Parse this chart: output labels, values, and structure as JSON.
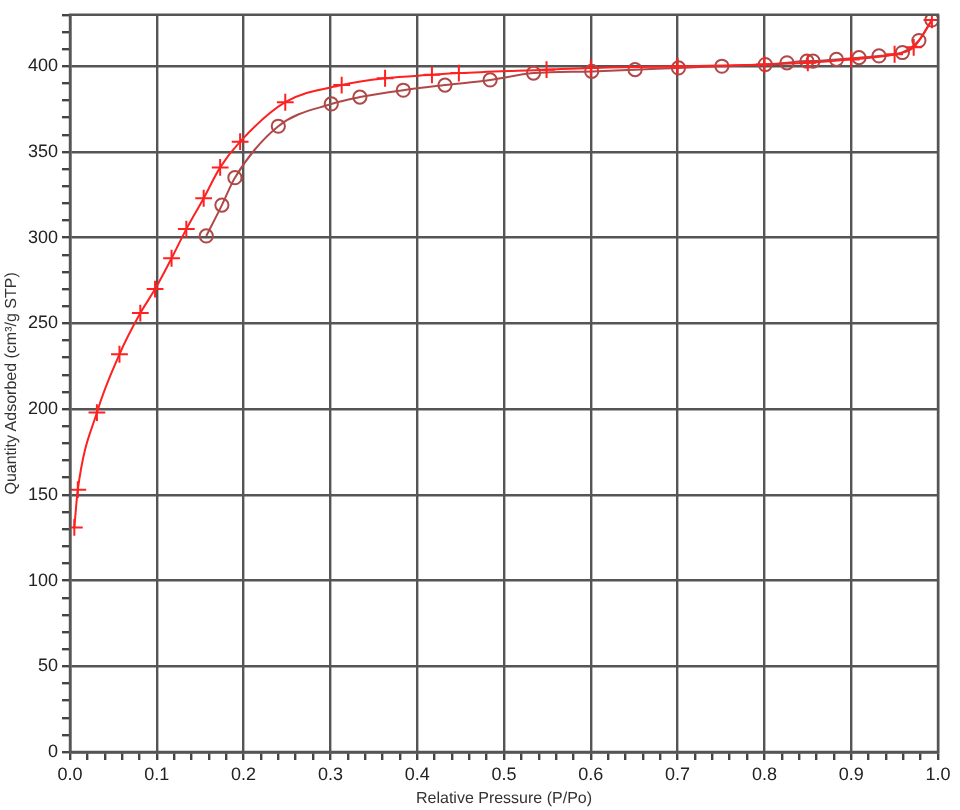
{
  "chart_data": {
    "type": "line",
    "xlabel": "Relative Pressure (P/Po)",
    "ylabel": "Quantity Adsorbed (cm³/g STP)",
    "xlim": [
      0,
      1
    ],
    "ylim": [
      0,
      430
    ],
    "xticks": [
      {
        "value": 0,
        "label": "0.0"
      },
      {
        "value": 0.02,
        "label": null
      },
      {
        "value": 0.04,
        "label": null
      },
      {
        "value": 0.06,
        "label": null
      },
      {
        "value": 0.08,
        "label": null
      },
      0.1,
      {
        "value": 0.12,
        "label": null
      },
      {
        "value": 0.14,
        "label": null
      },
      {
        "value": 0.16,
        "label": null
      },
      {
        "value": 0.18,
        "label": null
      },
      0.2,
      {
        "value": 0.22,
        "label": null
      },
      {
        "value": 0.24,
        "label": null
      },
      {
        "value": 0.26,
        "label": null
      },
      {
        "value": 0.28,
        "label": null
      },
      0.3,
      {
        "value": 0.32,
        "label": null
      },
      {
        "value": 0.34,
        "label": null
      },
      {
        "value": 0.36,
        "label": null
      },
      {
        "value": 0.38,
        "label": null
      },
      0.4,
      {
        "value": 0.42,
        "label": null
      },
      {
        "value": 0.44,
        "label": null
      },
      {
        "value": 0.46,
        "label": null
      },
      {
        "value": 0.48,
        "label": null
      },
      0.5,
      {
        "value": 0.52,
        "label": null
      },
      {
        "value": 0.54,
        "label": null
      },
      {
        "value": 0.56,
        "label": null
      },
      {
        "value": 0.58,
        "label": null
      },
      0.6,
      {
        "value": 0.62,
        "label": null
      },
      {
        "value": 0.64,
        "label": null
      },
      {
        "value": 0.66,
        "label": null
      },
      {
        "value": 0.68,
        "label": null
      },
      0.7,
      {
        "value": 0.72,
        "label": null
      },
      {
        "value": 0.74,
        "label": null
      },
      {
        "value": 0.76,
        "label": null
      },
      {
        "value": 0.78,
        "label": null
      },
      0.8,
      {
        "value": 0.82,
        "label": null
      },
      {
        "value": 0.84,
        "label": null
      },
      {
        "value": 0.86,
        "label": null
      },
      {
        "value": 0.88,
        "label": null
      },
      0.9,
      {
        "value": 0.92,
        "label": null
      },
      {
        "value": 0.94,
        "label": null
      },
      {
        "value": 0.96,
        "label": null
      },
      {
        "value": 0.98,
        "label": null
      },
      {
        "value": 1,
        "label": "1.0"
      }
    ],
    "yticks": [
      0,
      {
        "value": 10,
        "label": null
      },
      {
        "value": 20,
        "label": null
      },
      {
        "value": 30,
        "label": null
      },
      {
        "value": 40,
        "label": null
      },
      50,
      {
        "value": 60,
        "label": null
      },
      {
        "value": 70,
        "label": null
      },
      {
        "value": 80,
        "label": null
      },
      {
        "value": 90,
        "label": null
      },
      100,
      {
        "value": 110,
        "label": null
      },
      {
        "value": 120,
        "label": null
      },
      {
        "value": 130,
        "label": null
      },
      {
        "value": 140,
        "label": null
      },
      150,
      {
        "value": 160,
        "label": null
      },
      {
        "value": 170,
        "label": null
      },
      {
        "value": 180,
        "label": null
      },
      {
        "value": 190,
        "label": null
      },
      200,
      {
        "value": 210,
        "label": null
      },
      {
        "value": 220,
        "label": null
      },
      {
        "value": 230,
        "label": null
      },
      {
        "value": 240,
        "label": null
      },
      250,
      {
        "value": 260,
        "label": null
      },
      {
        "value": 270,
        "label": null
      },
      {
        "value": 280,
        "label": null
      },
      {
        "value": 290,
        "label": null
      },
      300,
      {
        "value": 310,
        "label": null
      },
      {
        "value": 320,
        "label": null
      },
      {
        "value": 330,
        "label": null
      },
      {
        "value": 340,
        "label": null
      },
      350,
      {
        "value": 360,
        "label": null
      },
      {
        "value": 370,
        "label": null
      },
      {
        "value": 380,
        "label": null
      },
      {
        "value": 390,
        "label": null
      },
      400,
      {
        "value": 410,
        "label": null
      },
      {
        "value": 420,
        "label": null
      },
      {
        "value": 430,
        "label": null
      }
    ],
    "grid": true,
    "series": [
      {
        "color": "#ff2020",
        "marker": "cross",
        "x": [
          0.005,
          0.009,
          0.031,
          0.057,
          0.081,
          0.098,
          0.117,
          0.134,
          0.154,
          0.173,
          0.196,
          0.248,
          0.313,
          0.363,
          0.417,
          0.448,
          0.549,
          0.6,
          0.7,
          0.8,
          0.85,
          0.9,
          0.95,
          0.972,
          0.993
        ],
        "values": [
          131,
          153,
          198,
          232,
          256,
          270,
          288,
          305,
          323,
          341,
          356,
          379,
          389,
          393,
          395,
          396,
          398,
          399,
          400,
          401,
          402,
          404,
          407,
          411,
          427
        ]
      },
      {
        "color": "#b04848",
        "marker": "circle",
        "x": [
          0.157,
          0.175,
          0.19,
          0.24,
          0.301,
          0.334,
          0.384,
          0.432,
          0.484,
          0.534,
          0.601,
          0.651,
          0.701,
          0.751,
          0.801,
          0.826,
          0.849,
          0.856,
          0.883,
          0.909,
          0.932,
          0.959,
          0.978,
          0.993
        ],
        "values": [
          301,
          319,
          335,
          365,
          378,
          382,
          386,
          389,
          392,
          396,
          397,
          398,
          399,
          400,
          401,
          402,
          403,
          403,
          404,
          405,
          406,
          408,
          415,
          427
        ]
      }
    ]
  }
}
